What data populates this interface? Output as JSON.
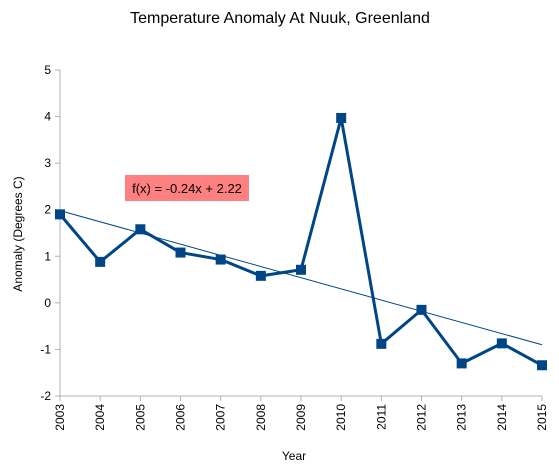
{
  "chart_data": {
    "type": "line",
    "title": "Temperature Anomaly At Nuuk, Greenland",
    "xlabel": "Year",
    "ylabel": "Anomaly (Degrees C)",
    "x": [
      "2003",
      "2004",
      "2005",
      "2006",
      "2007",
      "2008",
      "2009",
      "2010",
      "2011",
      "2012",
      "2013",
      "2014",
      "2015"
    ],
    "series": [
      {
        "values": [
          1.9,
          0.88,
          1.58,
          1.08,
          0.93,
          0.58,
          0.71,
          3.97,
          -0.88,
          -0.15,
          -1.3,
          -0.87,
          -1.34
        ]
      }
    ],
    "trendline": {
      "equation": "f(x) = -0.24x + 2.22",
      "slope": -0.24,
      "intercept": 2.22
    },
    "ylim": [
      -2,
      5
    ],
    "yticks": [
      "5",
      "4",
      "3",
      "2",
      "1",
      "0",
      "-1",
      "-2"
    ],
    "grid": false,
    "colors": {
      "series": "#004586",
      "trendline": "#004586",
      "equation_box": "#ff8080",
      "axis": "#b3b3b3"
    }
  }
}
